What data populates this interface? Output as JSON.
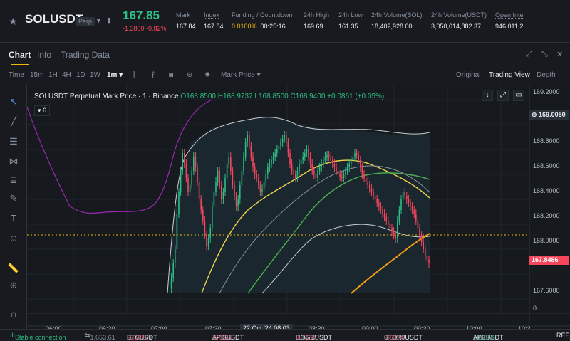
{
  "ticker": {
    "symbol": "SOLUSDT",
    "badge": "Perp",
    "last_price": "167.85",
    "change": "-1.3800",
    "change_pct": "-0.82%",
    "stats": [
      {
        "label": "Mark",
        "value": "167.84"
      },
      {
        "label": "Index",
        "value": "167.84"
      },
      {
        "label": "Funding / Countdown",
        "value_rate": "0.0100%",
        "value_time": "00:25:16"
      },
      {
        "label": "24h High",
        "value": "169.69"
      },
      {
        "label": "24h Low",
        "value": "161.35"
      },
      {
        "label": "24h Volume(SOL)",
        "value": "18,402,928.00"
      },
      {
        "label": "24h Volume(USDT)",
        "value": "3,050,014,882.37"
      },
      {
        "label": "Open Inte",
        "value": "946,011,2"
      }
    ]
  },
  "tabs": [
    "Chart",
    "Info",
    "Trading Data"
  ],
  "toolbar": {
    "intervals": [
      "Time",
      "15m",
      "1H",
      "4H",
      "1D",
      "1W",
      "1m"
    ],
    "price_type": "Mark Price",
    "views": [
      "Original",
      "Trading View",
      "Depth"
    ]
  },
  "chart": {
    "legend_title": "SOLUSDT Perpetual Mark Price · 1 · Binance",
    "ohlc": "O168.8500 H168.9737 L168.8500 C168.9400 +0.0861 (+0.05%)",
    "indicator_count": "6",
    "price_ticks": [
      "169.2000",
      "168.8000",
      "168.6000",
      "168.4000",
      "168.2000",
      "168.0000",
      "167.6000",
      "0"
    ],
    "time_ticks": [
      "06:00",
      "06:30",
      "07:00",
      "07:30",
      "08:30",
      "09:00",
      "09:30",
      "10:00",
      "10:3"
    ],
    "crosshair_time": "22 Oct '24  08:03",
    "crosshair_price": "169.0050",
    "current_price": "167.8486",
    "colors": {
      "up": "#2ebd85",
      "down": "#f6465d",
      "accent": "#f0b90b"
    }
  },
  "status": {
    "connection": "Stable connection",
    "index_value": "1,653.61",
    "tickers": [
      {
        "sym": "BTCUSDT",
        "pct": "-1.59%",
        "price": "67,558.9"
      },
      {
        "sym": "API3USDT",
        "pct": "-2.26%",
        "price": "1.7731"
      },
      {
        "sym": "DOGEUSDT",
        "pct": "-1.07%",
        "price": "0.14540"
      },
      {
        "sym": "STORJUSDT",
        "pct": "-3.10%",
        "price": "0.5194"
      },
      {
        "sym": "APEUSDT",
        "pct": "+0.29%",
        "price": "1.5037"
      },
      {
        "sym": "REEF",
        "pct": "",
        "price": ""
      }
    ]
  }
}
